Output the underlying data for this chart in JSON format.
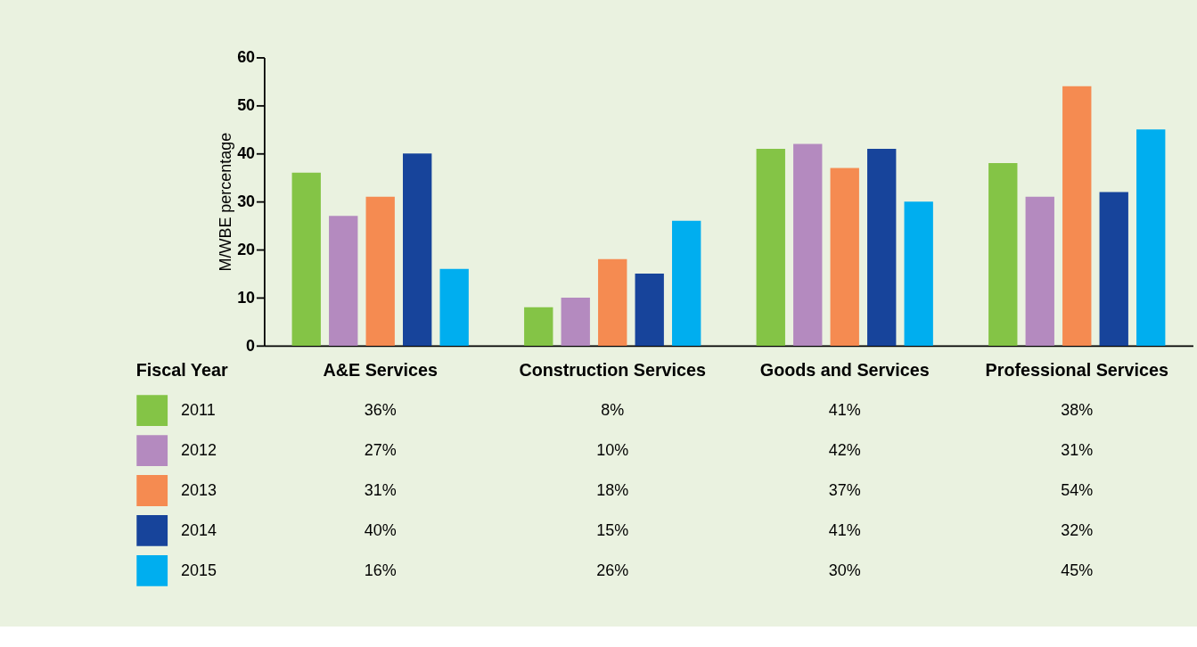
{
  "chart_data": {
    "type": "bar",
    "ylabel": "M/WBE percentage",
    "legend_title": "Fiscal Year",
    "legend": "bottom",
    "categories": [
      "A&E Services",
      "Construction Services",
      "Goods and Services",
      "Professional Services"
    ],
    "ylim": [
      0,
      60
    ],
    "yticks": [
      0,
      10,
      20,
      30,
      40,
      50,
      60
    ],
    "grid": false,
    "series": [
      {
        "name": "2011",
        "color": "#84c446",
        "values": [
          36,
          8,
          41,
          38
        ],
        "value_labels": [
          "36%",
          "8%",
          "41%",
          "38%"
        ]
      },
      {
        "name": "2012",
        "color": "#b48abf",
        "values": [
          27,
          10,
          42,
          31
        ],
        "value_labels": [
          "27%",
          "10%",
          "42%",
          "31%"
        ]
      },
      {
        "name": "2013",
        "color": "#f58b51",
        "values": [
          31,
          18,
          37,
          54
        ],
        "value_labels": [
          "31%",
          "18%",
          "37%",
          "54%"
        ]
      },
      {
        "name": "2014",
        "color": "#17449b",
        "values": [
          40,
          15,
          41,
          32
        ],
        "value_labels": [
          "40%",
          "15%",
          "41%",
          "32%"
        ]
      },
      {
        "name": "2015",
        "color": "#00aeef",
        "values": [
          16,
          26,
          30,
          45
        ],
        "value_labels": [
          "16%",
          "26%",
          "30%",
          "45%"
        ]
      }
    ]
  }
}
